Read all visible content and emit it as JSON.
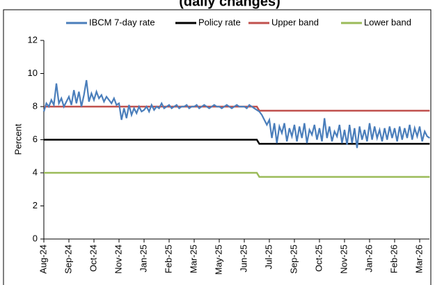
{
  "chart_data": {
    "type": "line",
    "title": "(daily changes)",
    "y_label": "Percent",
    "categories": [
      "Aug-24",
      null,
      null,
      null,
      null,
      null,
      null,
      null,
      null,
      null,
      "Sep-24",
      null,
      null,
      null,
      null,
      null,
      null,
      null,
      null,
      null,
      "Oct-24",
      null,
      null,
      null,
      null,
      null,
      null,
      null,
      null,
      null,
      "Nov-24",
      null,
      null,
      null,
      null,
      null,
      null,
      null,
      null,
      null,
      "Jan-25",
      null,
      null,
      null,
      null,
      null,
      null,
      null,
      null,
      null,
      "Feb-25",
      null,
      null,
      null,
      null,
      null,
      null,
      null,
      null,
      null,
      "Mar-25",
      null,
      null,
      null,
      null,
      null,
      null,
      null,
      null,
      null,
      "May-25",
      null,
      null,
      null,
      null,
      null,
      null,
      null,
      null,
      null,
      "Jun-25",
      null,
      null,
      null,
      null,
      null,
      null,
      null,
      null,
      null,
      "Jul-25",
      null,
      null,
      null,
      null,
      null,
      null,
      null,
      null,
      null,
      "Sep-25",
      null,
      null,
      null,
      null,
      null,
      null,
      null,
      null,
      null,
      "Oct-25",
      null,
      null,
      null,
      null,
      null,
      null,
      null,
      null,
      null,
      "Nov-25",
      null,
      null,
      null,
      null,
      null,
      null,
      null,
      null,
      null,
      "Jan-26",
      null,
      null,
      null,
      null,
      null,
      null,
      null,
      null,
      null,
      "Feb-26",
      null,
      null,
      null,
      null,
      null,
      null,
      null,
      null,
      null,
      "Mar-26",
      null,
      null,
      null,
      null
    ],
    "series": [
      {
        "name": "IBCM 7-day rate",
        "color": "#4a7ebb",
        "values": [
          7.7,
          8.2,
          8.0,
          8.4,
          8.1,
          9.4,
          8.2,
          8.5,
          8.0,
          8.3,
          8.6,
          8.1,
          9.0,
          8.2,
          8.9,
          8.0,
          8.7,
          9.6,
          8.3,
          8.8,
          8.4,
          8.9,
          8.5,
          8.7,
          8.3,
          8.6,
          8.4,
          8.2,
          8.5,
          8.1,
          8.2,
          7.2,
          7.9,
          7.3,
          8.1,
          7.5,
          7.9,
          7.6,
          8.0,
          7.7,
          7.8,
          8.0,
          7.7,
          8.1,
          7.8,
          8.0,
          7.9,
          8.2,
          7.9,
          8.0,
          8.1,
          7.9,
          8.0,
          8.1,
          7.9,
          8.0,
          8.0,
          8.1,
          7.9,
          8.0,
          8.0,
          8.1,
          7.9,
          8.0,
          8.1,
          8.0,
          7.9,
          8.0,
          8.1,
          8.0,
          8.0,
          7.9,
          8.0,
          8.1,
          8.0,
          7.9,
          8.0,
          8.1,
          8.0,
          8.0,
          8.0,
          7.9,
          8.1,
          8.0,
          7.9,
          7.8,
          7.7,
          7.5,
          7.2,
          6.9,
          7.2,
          6.1,
          7.0,
          5.8,
          6.8,
          6.4,
          7.0,
          5.9,
          6.7,
          6.2,
          6.9,
          5.9,
          6.8,
          6.1,
          7.0,
          5.8,
          6.6,
          6.3,
          6.9,
          6.0,
          6.7,
          5.9,
          7.3,
          6.1,
          6.8,
          5.9,
          6.5,
          6.2,
          6.9,
          5.8,
          6.6,
          5.7,
          6.9,
          5.8,
          6.7,
          5.5,
          6.8,
          6.0,
          6.6,
          5.9,
          7.0,
          6.0,
          6.8,
          6.1,
          6.6,
          5.9,
          6.7,
          6.0,
          6.8,
          6.1,
          6.7,
          5.9,
          6.8,
          6.0,
          6.7,
          6.1,
          6.9,
          6.0,
          6.7,
          6.2,
          6.8,
          5.9,
          6.5,
          6.2,
          6.1
        ]
      },
      {
        "name": "Policy rate",
        "color": "#000000",
        "values": [
          6,
          6,
          6,
          6,
          6,
          6,
          6,
          6,
          6,
          6,
          6,
          6,
          6,
          6,
          6,
          6,
          6,
          6,
          6,
          6,
          6,
          6,
          6,
          6,
          6,
          6,
          6,
          6,
          6,
          6,
          6,
          6,
          6,
          6,
          6,
          6,
          6,
          6,
          6,
          6,
          6,
          6,
          6,
          6,
          6,
          6,
          6,
          6,
          6,
          6,
          6,
          6,
          6,
          6,
          6,
          6,
          6,
          6,
          6,
          6,
          6,
          6,
          6,
          6,
          6,
          6,
          6,
          6,
          6,
          6,
          6,
          6,
          6,
          6,
          6,
          6,
          6,
          6,
          6,
          6,
          6,
          6,
          6,
          6,
          6,
          6,
          5.75,
          5.75,
          5.75,
          5.75,
          5.75,
          5.75,
          5.75,
          5.75,
          5.75,
          5.75,
          5.75,
          5.75,
          5.75,
          5.75,
          5.75,
          5.75,
          5.75,
          5.75,
          5.75,
          5.75,
          5.75,
          5.75,
          5.75,
          5.75,
          5.75,
          5.75,
          5.75,
          5.75,
          5.75,
          5.75,
          5.75,
          5.75,
          5.75,
          5.75,
          5.75,
          5.75,
          5.75,
          5.75,
          5.75,
          5.75,
          5.75,
          5.75,
          5.75,
          5.75,
          5.75,
          5.75,
          5.75,
          5.75,
          5.75,
          5.75,
          5.75,
          5.75,
          5.75,
          5.75,
          5.75,
          5.75,
          5.75,
          5.75,
          5.75,
          5.75,
          5.75,
          5.75,
          5.75,
          5.75,
          5.75,
          5.75,
          5.75,
          5.75,
          5.75
        ]
      },
      {
        "name": "Upper band",
        "color": "#c0504d",
        "values": [
          8,
          8,
          8,
          8,
          8,
          8,
          8,
          8,
          8,
          8,
          8,
          8,
          8,
          8,
          8,
          8,
          8,
          8,
          8,
          8,
          8,
          8,
          8,
          8,
          8,
          8,
          8,
          8,
          8,
          8,
          8,
          8,
          8,
          8,
          8,
          8,
          8,
          8,
          8,
          8,
          8,
          8,
          8,
          8,
          8,
          8,
          8,
          8,
          8,
          8,
          8,
          8,
          8,
          8,
          8,
          8,
          8,
          8,
          8,
          8,
          8,
          8,
          8,
          8,
          8,
          8,
          8,
          8,
          8,
          8,
          8,
          8,
          8,
          8,
          8,
          8,
          8,
          8,
          8,
          8,
          8,
          8,
          8,
          8,
          8,
          8,
          7.75,
          7.75,
          7.75,
          7.75,
          7.75,
          7.75,
          7.75,
          7.75,
          7.75,
          7.75,
          7.75,
          7.75,
          7.75,
          7.75,
          7.75,
          7.75,
          7.75,
          7.75,
          7.75,
          7.75,
          7.75,
          7.75,
          7.75,
          7.75,
          7.75,
          7.75,
          7.75,
          7.75,
          7.75,
          7.75,
          7.75,
          7.75,
          7.75,
          7.75,
          7.75,
          7.75,
          7.75,
          7.75,
          7.75,
          7.75,
          7.75,
          7.75,
          7.75,
          7.75,
          7.75,
          7.75,
          7.75,
          7.75,
          7.75,
          7.75,
          7.75,
          7.75,
          7.75,
          7.75,
          7.75,
          7.75,
          7.75,
          7.75,
          7.75,
          7.75,
          7.75,
          7.75,
          7.75,
          7.75,
          7.75,
          7.75,
          7.75,
          7.75,
          7.75
        ]
      },
      {
        "name": "Lower band",
        "color": "#9bbb59",
        "values": [
          4,
          4,
          4,
          4,
          4,
          4,
          4,
          4,
          4,
          4,
          4,
          4,
          4,
          4,
          4,
          4,
          4,
          4,
          4,
          4,
          4,
          4,
          4,
          4,
          4,
          4,
          4,
          4,
          4,
          4,
          4,
          4,
          4,
          4,
          4,
          4,
          4,
          4,
          4,
          4,
          4,
          4,
          4,
          4,
          4,
          4,
          4,
          4,
          4,
          4,
          4,
          4,
          4,
          4,
          4,
          4,
          4,
          4,
          4,
          4,
          4,
          4,
          4,
          4,
          4,
          4,
          4,
          4,
          4,
          4,
          4,
          4,
          4,
          4,
          4,
          4,
          4,
          4,
          4,
          4,
          4,
          4,
          4,
          4,
          4,
          4,
          3.75,
          3.75,
          3.75,
          3.75,
          3.75,
          3.75,
          3.75,
          3.75,
          3.75,
          3.75,
          3.75,
          3.75,
          3.75,
          3.75,
          3.75,
          3.75,
          3.75,
          3.75,
          3.75,
          3.75,
          3.75,
          3.75,
          3.75,
          3.75,
          3.75,
          3.75,
          3.75,
          3.75,
          3.75,
          3.75,
          3.75,
          3.75,
          3.75,
          3.75,
          3.75,
          3.75,
          3.75,
          3.75,
          3.75,
          3.75,
          3.75,
          3.75,
          3.75,
          3.75,
          3.75,
          3.75,
          3.75,
          3.75,
          3.75,
          3.75,
          3.75,
          3.75,
          3.75,
          3.75,
          3.75,
          3.75,
          3.75,
          3.75,
          3.75,
          3.75,
          3.75,
          3.75,
          3.75,
          3.75,
          3.75,
          3.75,
          3.75,
          3.75,
          3.75
        ]
      }
    ],
    "ylim": [
      0,
      12
    ],
    "yticks": [
      0,
      2,
      4,
      6,
      8,
      10,
      12
    ],
    "legend": "top"
  }
}
